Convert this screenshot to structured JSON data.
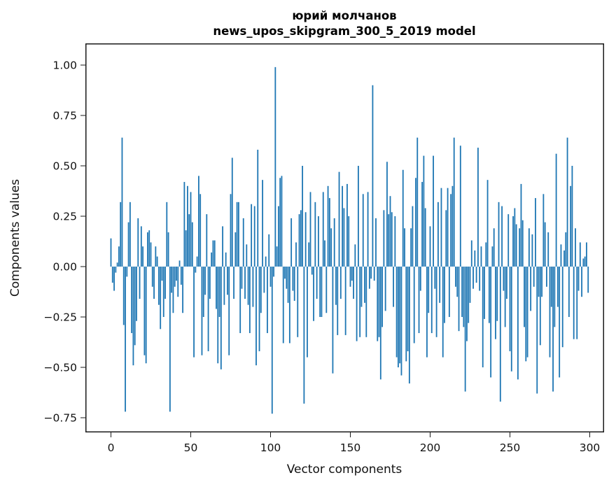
{
  "figure": {
    "title_line1": "юрий молчанов",
    "title_line2": "news_upos_skipgram_300_5_2019 model"
  },
  "chart_data": {
    "type": "bar",
    "title": "юрий молчанов\nnews_upos_skipgram_300_5_2019 model",
    "xlabel": "Vector components",
    "ylabel": "Components values",
    "bar_color": "#1f77b4",
    "n_bars": 300,
    "xlim": [
      -16,
      316
    ],
    "ylim": [
      -0.82,
      1.11
    ],
    "grid": false,
    "legend": "none",
    "xtick_values": [
      0,
      50,
      100,
      150,
      200,
      250,
      300
    ],
    "xtick_labels": [
      "0",
      "50",
      "100",
      "150",
      "200",
      "250",
      "300"
    ],
    "ytick_values": [
      1.0,
      0.75,
      0.5,
      0.25,
      0.0,
      -0.25,
      -0.5,
      -0.75
    ],
    "ytick_labels": [
      "1.00",
      "0.75",
      "0.50",
      "0.25",
      "0.00",
      "−0.25",
      "−0.50",
      "−0.75"
    ],
    "values": [
      0.14,
      -0.08,
      -0.12,
      -0.03,
      0.02,
      0.1,
      0.32,
      0.64,
      -0.29,
      -0.72,
      -0.05,
      0.22,
      0.32,
      -0.33,
      -0.49,
      -0.39,
      -0.27,
      0.24,
      -0.16,
      0.2,
      0.1,
      -0.44,
      -0.48,
      0.17,
      0.18,
      0.12,
      -0.1,
      -0.16,
      0.1,
      0.05,
      -0.19,
      -0.31,
      -0.07,
      -0.25,
      -0.16,
      0.32,
      0.17,
      -0.72,
      -0.13,
      -0.23,
      -0.1,
      -0.07,
      -0.15,
      0.03,
      -0.09,
      -0.23,
      0.42,
      0.18,
      0.4,
      0.26,
      0.37,
      0.22,
      -0.45,
      -0.03,
      0.05,
      0.45,
      0.36,
      -0.44,
      -0.25,
      -0.14,
      0.26,
      -0.42,
      -0.16,
      0.07,
      0.13,
      0.13,
      -0.21,
      -0.48,
      -0.25,
      -0.51,
      0.2,
      -0.19,
      0.07,
      -0.14,
      -0.44,
      0.36,
      0.54,
      -0.16,
      0.17,
      0.32,
      0.32,
      -0.33,
      -0.11,
      0.24,
      -0.16,
      0.11,
      -0.19,
      -0.33,
      0.31,
      -0.2,
      0.3,
      -0.49,
      0.58,
      -0.42,
      -0.23,
      0.43,
      -0.13,
      0.05,
      -0.33,
      0.16,
      -0.1,
      -0.73,
      -0.05,
      0.99,
      0.1,
      0.3,
      0.44,
      0.45,
      -0.38,
      -0.06,
      -0.11,
      -0.18,
      -0.38,
      0.24,
      -0.12,
      -0.17,
      0.12,
      -0.35,
      0.26,
      0.28,
      0.5,
      -0.68,
      0.27,
      -0.45,
      0.12,
      0.37,
      -0.04,
      -0.27,
      0.32,
      -0.16,
      0.25,
      -0.25,
      -0.25,
      0.37,
      0.13,
      -0.23,
      0.4,
      0.34,
      0.19,
      -0.53,
      0.24,
      -0.19,
      -0.34,
      0.47,
      -0.16,
      0.4,
      0.29,
      -0.34,
      0.41,
      0.25,
      -0.1,
      -0.07,
      -0.16,
      0.11,
      -0.37,
      0.5,
      -0.35,
      -0.2,
      0.36,
      -0.18,
      -0.35,
      0.37,
      -0.11,
      -0.06,
      0.9,
      -0.07,
      0.24,
      -0.37,
      -0.35,
      -0.56,
      -0.3,
      0.28,
      -0.22,
      0.52,
      0.26,
      0.35,
      0.27,
      -0.2,
      0.25,
      -0.45,
      -0.5,
      -0.48,
      -0.54,
      0.48,
      0.19,
      -0.47,
      -0.42,
      -0.58,
      0.19,
      0.3,
      -0.38,
      0.44,
      0.64,
      -0.33,
      -0.12,
      0.42,
      0.55,
      0.29,
      -0.45,
      -0.23,
      0.2,
      -0.33,
      0.55,
      -0.11,
      -0.35,
      0.32,
      -0.18,
      0.39,
      -0.45,
      -0.28,
      0.28,
      0.39,
      -0.25,
      0.36,
      0.4,
      0.64,
      -0.1,
      -0.15,
      -0.32,
      0.6,
      -0.25,
      -0.3,
      -0.62,
      -0.37,
      -0.28,
      -0.18,
      0.13,
      -0.11,
      0.08,
      -0.08,
      0.59,
      -0.12,
      0.1,
      -0.5,
      -0.26,
      0.12,
      0.43,
      -0.28,
      -0.55,
      0.1,
      0.19,
      -0.36,
      -0.27,
      0.32,
      -0.67,
      0.3,
      -0.12,
      -0.3,
      -0.16,
      0.26,
      -0.42,
      -0.52,
      0.25,
      0.29,
      0.21,
      -0.56,
      0.19,
      0.41,
      0.23,
      -0.3,
      -0.47,
      -0.45,
      0.19,
      -0.22,
      0.16,
      -0.1,
      0.34,
      -0.63,
      -0.15,
      -0.39,
      -0.15,
      0.36,
      0.22,
      -0.1,
      0.17,
      -0.45,
      -0.2,
      -0.62,
      -0.3,
      0.56,
      -0.2,
      -0.55,
      0.11,
      -0.4,
      0.08,
      0.17,
      0.64,
      -0.25,
      0.4,
      0.5,
      -0.36,
      0.19,
      -0.36,
      -0.12,
      0.12,
      -0.15,
      0.04,
      0.05,
      0.12,
      -0.13
    ]
  }
}
